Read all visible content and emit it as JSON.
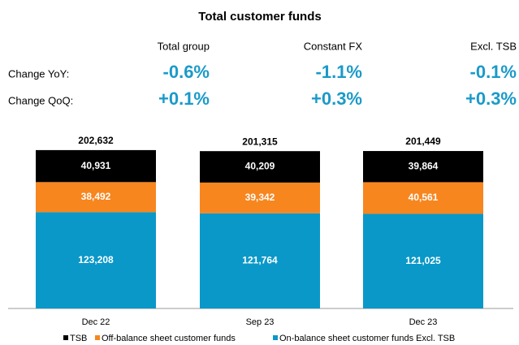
{
  "header": {
    "columns": [
      "Total group",
      "Constant FX",
      "Excl. TSB"
    ],
    "rows": [
      {
        "label": "Change YoY:",
        "values": [
          "-0.6%",
          "-1.1%",
          "-0.1%"
        ]
      },
      {
        "label": "Change QoQ:",
        "values": [
          "+0.1%",
          "+0.3%",
          "+0.3%"
        ]
      }
    ]
  },
  "chart_data": {
    "type": "stacked_bar",
    "title": "Total customer funds",
    "categories": [
      "Dec 22",
      "Sep 23",
      "Dec 23"
    ],
    "series": [
      {
        "name": "TSB",
        "color": "#000000",
        "values": [
          40931,
          40209,
          39864
        ],
        "value_labels": [
          "40,931",
          "40,209",
          "39,864"
        ]
      },
      {
        "name": "Off-balance sheet customer funds",
        "color": "#f7861f",
        "values": [
          38492,
          39342,
          40561
        ],
        "value_labels": [
          "38,492",
          "39,342",
          "40,561"
        ]
      },
      {
        "name": "On-balance sheet customer funds Excl. TSB",
        "color": "#0a98c8",
        "values": [
          123208,
          121764,
          121025
        ],
        "value_labels": [
          "123,208",
          "121,764",
          "121,025"
        ]
      }
    ],
    "totals": [
      202632,
      201315,
      201449
    ],
    "total_labels": [
      "202,632",
      "201,315",
      "201,449"
    ],
    "ylim": [
      0,
      215000
    ]
  }
}
